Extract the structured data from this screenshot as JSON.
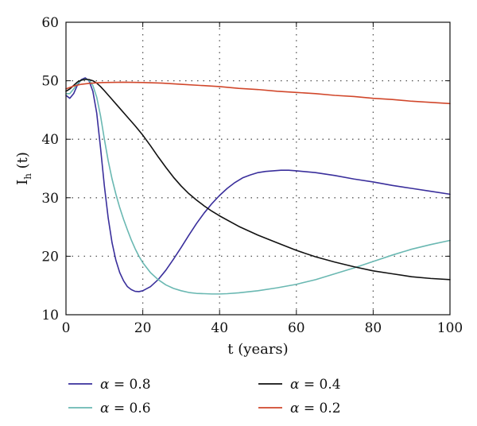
{
  "chart_data": {
    "type": "line",
    "title": "",
    "xlabel": "t (years)",
    "ylabel_main": "I",
    "ylabel_sub": "h",
    "ylabel_suffix": " (t)",
    "xlim": [
      0,
      100
    ],
    "ylim": [
      10,
      60
    ],
    "xticks": [
      0,
      20,
      40,
      60,
      80,
      100
    ],
    "yticks": [
      10,
      20,
      30,
      40,
      50,
      60
    ],
    "grid": "dotted",
    "legend_position": "bottom",
    "legend_prefix": "α",
    "series": [
      {
        "name": "= 0.8",
        "color": "#3a2f9c",
        "points": [
          [
            0,
            47.5
          ],
          [
            1,
            47.0
          ],
          [
            2,
            47.8
          ],
          [
            3,
            49.3
          ],
          [
            4,
            50.2
          ],
          [
            5,
            50.5
          ],
          [
            6,
            50.0
          ],
          [
            7,
            48.2
          ],
          [
            8,
            44.5
          ],
          [
            9,
            38.5
          ],
          [
            10,
            32.0
          ],
          [
            11,
            26.5
          ],
          [
            12,
            22.3
          ],
          [
            13,
            19.3
          ],
          [
            14,
            17.2
          ],
          [
            15,
            15.8
          ],
          [
            16,
            14.8
          ],
          [
            17,
            14.3
          ],
          [
            18,
            14.0
          ],
          [
            19,
            13.95
          ],
          [
            20,
            14.1
          ],
          [
            22,
            14.8
          ],
          [
            24,
            16.0
          ],
          [
            26,
            17.6
          ],
          [
            28,
            19.5
          ],
          [
            30,
            21.5
          ],
          [
            32,
            23.6
          ],
          [
            34,
            25.6
          ],
          [
            36,
            27.4
          ],
          [
            38,
            29.0
          ],
          [
            40,
            30.4
          ],
          [
            42,
            31.6
          ],
          [
            44,
            32.6
          ],
          [
            46,
            33.4
          ],
          [
            48,
            33.9
          ],
          [
            50,
            34.3
          ],
          [
            52,
            34.5
          ],
          [
            54,
            34.6
          ],
          [
            56,
            34.7
          ],
          [
            58,
            34.7
          ],
          [
            60,
            34.6
          ],
          [
            65,
            34.3
          ],
          [
            70,
            33.8
          ],
          [
            75,
            33.2
          ],
          [
            80,
            32.7
          ],
          [
            85,
            32.1
          ],
          [
            90,
            31.6
          ],
          [
            95,
            31.1
          ],
          [
            100,
            30.6
          ]
        ]
      },
      {
        "name": "= 0.6",
        "color": "#6ab8b2",
        "points": [
          [
            0,
            47.8
          ],
          [
            1,
            47.8
          ],
          [
            2,
            48.6
          ],
          [
            3,
            49.5
          ],
          [
            4,
            50.1
          ],
          [
            5,
            50.3
          ],
          [
            6,
            50.1
          ],
          [
            7,
            49.2
          ],
          [
            8,
            47.2
          ],
          [
            9,
            44.0
          ],
          [
            10,
            40.0
          ],
          [
            11,
            36.3
          ],
          [
            12,
            33.2
          ],
          [
            13,
            30.6
          ],
          [
            14,
            28.3
          ],
          [
            15,
            26.3
          ],
          [
            16,
            24.5
          ],
          [
            17,
            22.8
          ],
          [
            18,
            21.3
          ],
          [
            19,
            20.0
          ],
          [
            20,
            18.9
          ],
          [
            22,
            17.2
          ],
          [
            24,
            16.0
          ],
          [
            26,
            15.1
          ],
          [
            28,
            14.5
          ],
          [
            30,
            14.1
          ],
          [
            32,
            13.8
          ],
          [
            34,
            13.65
          ],
          [
            36,
            13.6
          ],
          [
            38,
            13.55
          ],
          [
            40,
            13.55
          ],
          [
            42,
            13.6
          ],
          [
            45,
            13.75
          ],
          [
            50,
            14.1
          ],
          [
            55,
            14.6
          ],
          [
            60,
            15.2
          ],
          [
            65,
            16.0
          ],
          [
            70,
            17.0
          ],
          [
            75,
            18.0
          ],
          [
            80,
            19.1
          ],
          [
            85,
            20.2
          ],
          [
            90,
            21.2
          ],
          [
            95,
            22.0
          ],
          [
            100,
            22.7
          ]
        ]
      },
      {
        "name": "= 0.4",
        "color": "#111111",
        "points": [
          [
            0,
            48.2
          ],
          [
            1,
            48.6
          ],
          [
            2,
            49.2
          ],
          [
            3,
            49.8
          ],
          [
            4,
            50.1
          ],
          [
            5,
            50.25
          ],
          [
            6,
            50.2
          ],
          [
            7,
            50.0
          ],
          [
            8,
            49.6
          ],
          [
            9,
            49.0
          ],
          [
            10,
            48.3
          ],
          [
            12,
            46.8
          ],
          [
            14,
            45.3
          ],
          [
            16,
            43.8
          ],
          [
            18,
            42.3
          ],
          [
            20,
            40.7
          ],
          [
            22,
            38.9
          ],
          [
            24,
            37.0
          ],
          [
            26,
            35.2
          ],
          [
            28,
            33.5
          ],
          [
            30,
            32.0
          ],
          [
            32,
            30.7
          ],
          [
            34,
            29.6
          ],
          [
            36,
            28.6
          ],
          [
            38,
            27.7
          ],
          [
            40,
            26.9
          ],
          [
            45,
            25.1
          ],
          [
            50,
            23.6
          ],
          [
            55,
            22.3
          ],
          [
            60,
            21.0
          ],
          [
            65,
            19.9
          ],
          [
            70,
            19.0
          ],
          [
            75,
            18.2
          ],
          [
            80,
            17.5
          ],
          [
            85,
            17.0
          ],
          [
            90,
            16.5
          ],
          [
            95,
            16.2
          ],
          [
            100,
            16.0
          ]
        ]
      },
      {
        "name": "= 0.2",
        "color": "#d1472b",
        "points": [
          [
            0,
            48.6
          ],
          [
            2,
            49.1
          ],
          [
            4,
            49.4
          ],
          [
            6,
            49.55
          ],
          [
            8,
            49.65
          ],
          [
            10,
            49.7
          ],
          [
            15,
            49.75
          ],
          [
            20,
            49.7
          ],
          [
            25,
            49.6
          ],
          [
            30,
            49.4
          ],
          [
            35,
            49.2
          ],
          [
            40,
            49.0
          ],
          [
            45,
            48.7
          ],
          [
            50,
            48.5
          ],
          [
            55,
            48.2
          ],
          [
            60,
            48.0
          ],
          [
            65,
            47.8
          ],
          [
            70,
            47.5
          ],
          [
            75,
            47.3
          ],
          [
            80,
            47.0
          ],
          [
            85,
            46.8
          ],
          [
            90,
            46.5
          ],
          [
            95,
            46.3
          ],
          [
            100,
            46.1
          ]
        ]
      }
    ]
  }
}
